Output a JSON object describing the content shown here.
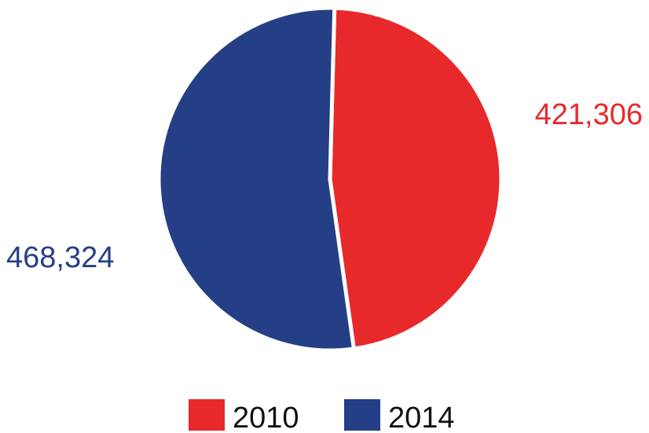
{
  "chart_data": {
    "type": "pie",
    "title": "",
    "slices": [
      {
        "label": "2010",
        "value": 421306,
        "display": "421,306",
        "color": "#E8292B"
      },
      {
        "label": "2014",
        "value": 468324,
        "display": "468,324",
        "color": "#253F87"
      }
    ],
    "legend": {
      "placement": "bottom",
      "items": [
        "2010",
        "2014"
      ]
    },
    "grid": false
  }
}
